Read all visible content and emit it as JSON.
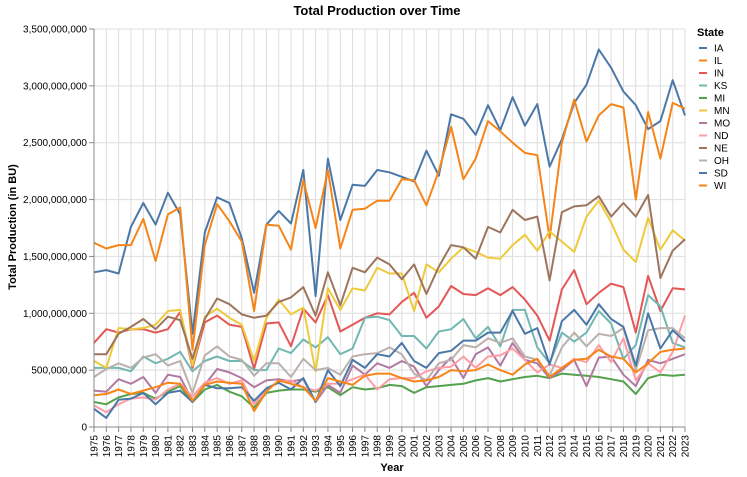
{
  "chart_data": {
    "type": "line",
    "title": "Total Production over Time",
    "xlabel": "Year",
    "ylabel": "Total Production (in BU)",
    "ylim": [
      0,
      3500000000
    ],
    "yticks": [
      0,
      500000000,
      1000000000,
      1500000000,
      2000000000,
      2500000000,
      3000000000,
      3500000000
    ],
    "ytick_labels": [
      "0",
      "500,000,000",
      "1,000,000,000",
      "1,500,000,000",
      "2,000,000,000",
      "2,500,000,000",
      "3,000,000,000",
      "3,500,000,000"
    ],
    "grid": true,
    "legend_title": "State",
    "legend_position": "right",
    "x": [
      "1975",
      "1976",
      "1977",
      "1978",
      "1979",
      "1980",
      "1981",
      "1982",
      "1983",
      "1984",
      "1985",
      "1986",
      "1987",
      "1988",
      "1989",
      "1990",
      "1991",
      "1992",
      "1993",
      "1994",
      "1995",
      "1996",
      "1997",
      "1998",
      "1999",
      "2000",
      "2001",
      "2002",
      "2003",
      "2004",
      "2005",
      "2006",
      "2007",
      "2008",
      "2009",
      "2010",
      "2011",
      "2012",
      "2013",
      "2014",
      "2015",
      "2016",
      "2017",
      "2018",
      "2019",
      "2020",
      "2021",
      "2022",
      "2023"
    ],
    "series": [
      {
        "name": "IA",
        "color": "#4c78a8",
        "values": [
          1360000000,
          1380000000,
          1350000000,
          1760000000,
          1970000000,
          1780000000,
          2060000000,
          1870000000,
          820000000,
          1710000000,
          2020000000,
          1970000000,
          1660000000,
          1180000000,
          1780000000,
          1900000000,
          1790000000,
          2260000000,
          1150000000,
          2360000000,
          1820000000,
          2130000000,
          2120000000,
          2260000000,
          2240000000,
          2200000000,
          2160000000,
          2430000000,
          2210000000,
          2750000000,
          2710000000,
          2570000000,
          2830000000,
          2610000000,
          2900000000,
          2650000000,
          2840000000,
          2290000000,
          2530000000,
          2850000000,
          3010000000,
          3320000000,
          3160000000,
          2950000000,
          2830000000,
          2620000000,
          2690000000,
          3050000000,
          2740000000
        ]
      },
      {
        "name": "IL",
        "color": "#f58518",
        "values": [
          1620000000,
          1570000000,
          1600000000,
          1600000000,
          1830000000,
          1460000000,
          1870000000,
          1930000000,
          680000000,
          1600000000,
          1960000000,
          1810000000,
          1630000000,
          1020000000,
          1780000000,
          1770000000,
          1560000000,
          2170000000,
          1750000000,
          2260000000,
          1570000000,
          1910000000,
          1920000000,
          1990000000,
          1990000000,
          2180000000,
          2170000000,
          1950000000,
          2250000000,
          2640000000,
          2180000000,
          2360000000,
          2690000000,
          2600000000,
          2500000000,
          2410000000,
          2390000000,
          1660000000,
          2500000000,
          2880000000,
          2510000000,
          2740000000,
          2840000000,
          2810000000,
          2000000000,
          2770000000,
          2360000000,
          2850000000,
          2800000000
        ]
      },
      {
        "name": "IN",
        "color": "#e45756",
        "values": [
          740000000,
          860000000,
          830000000,
          860000000,
          860000000,
          830000000,
          860000000,
          1010000000,
          520000000,
          920000000,
          980000000,
          900000000,
          880000000,
          510000000,
          910000000,
          920000000,
          710000000,
          1040000000,
          920000000,
          1160000000,
          840000000,
          900000000,
          960000000,
          1000000000,
          990000000,
          1100000000,
          1180000000,
          960000000,
          1060000000,
          1240000000,
          1170000000,
          1160000000,
          1220000000,
          1160000000,
          1230000000,
          1120000000,
          980000000,
          760000000,
          1210000000,
          1380000000,
          1080000000,
          1180000000,
          1260000000,
          1230000000,
          830000000,
          1330000000,
          1020000000,
          1220000000,
          1210000000
        ]
      },
      {
        "name": "KS",
        "color": "#72b7b2",
        "values": [
          520000000,
          520000000,
          520000000,
          490000000,
          620000000,
          560000000,
          600000000,
          660000000,
          490000000,
          580000000,
          620000000,
          580000000,
          580000000,
          500000000,
          500000000,
          690000000,
          650000000,
          770000000,
          700000000,
          790000000,
          640000000,
          690000000,
          960000000,
          970000000,
          940000000,
          800000000,
          800000000,
          690000000,
          840000000,
          860000000,
          950000000,
          780000000,
          880000000,
          710000000,
          1030000000,
          1030000000,
          700000000,
          560000000,
          830000000,
          750000000,
          830000000,
          1020000000,
          910000000,
          600000000,
          720000000,
          1160000000,
          1060000000,
          740000000,
          700000000
        ]
      },
      {
        "name": "MI",
        "color": "#54a24b",
        "values": [
          220000000,
          200000000,
          260000000,
          290000000,
          300000000,
          250000000,
          310000000,
          360000000,
          220000000,
          330000000,
          370000000,
          310000000,
          270000000,
          170000000,
          300000000,
          320000000,
          330000000,
          330000000,
          310000000,
          350000000,
          280000000,
          350000000,
          330000000,
          340000000,
          370000000,
          360000000,
          300000000,
          350000000,
          360000000,
          370000000,
          380000000,
          410000000,
          430000000,
          400000000,
          420000000,
          440000000,
          450000000,
          430000000,
          470000000,
          460000000,
          450000000,
          440000000,
          420000000,
          400000000,
          290000000,
          430000000,
          460000000,
          450000000,
          460000000
        ]
      },
      {
        "name": "MN",
        "color": "#eeca3b",
        "values": [
          580000000,
          520000000,
          870000000,
          860000000,
          870000000,
          900000000,
          1020000000,
          1030000000,
          540000000,
          970000000,
          1040000000,
          960000000,
          900000000,
          580000000,
          960000000,
          1120000000,
          990000000,
          1050000000,
          490000000,
          1220000000,
          1030000000,
          1220000000,
          1200000000,
          1400000000,
          1350000000,
          1350000000,
          1020000000,
          1430000000,
          1360000000,
          1480000000,
          1580000000,
          1540000000,
          1490000000,
          1480000000,
          1600000000,
          1690000000,
          1550000000,
          1720000000,
          1630000000,
          1540000000,
          1850000000,
          1990000000,
          1800000000,
          1560000000,
          1450000000,
          1840000000,
          1560000000,
          1730000000,
          1640000000
        ]
      },
      {
        "name": "MO",
        "color": "#b279a2",
        "values": [
          320000000,
          310000000,
          420000000,
          380000000,
          440000000,
          300000000,
          460000000,
          440000000,
          230000000,
          370000000,
          510000000,
          480000000,
          430000000,
          350000000,
          410000000,
          420000000,
          400000000,
          420000000,
          220000000,
          370000000,
          300000000,
          540000000,
          460000000,
          560000000,
          520000000,
          580000000,
          530000000,
          360000000,
          500000000,
          610000000,
          430000000,
          640000000,
          700000000,
          540000000,
          740000000,
          590000000,
          560000000,
          430000000,
          500000000,
          590000000,
          360000000,
          610000000,
          620000000,
          460000000,
          360000000,
          590000000,
          560000000,
          600000000,
          640000000
        ]
      },
      {
        "name": "ND",
        "color": "#ff9da6",
        "values": [
          190000000,
          130000000,
          200000000,
          250000000,
          260000000,
          240000000,
          330000000,
          380000000,
          270000000,
          390000000,
          430000000,
          380000000,
          410000000,
          200000000,
          330000000,
          400000000,
          410000000,
          350000000,
          320000000,
          380000000,
          380000000,
          420000000,
          460000000,
          330000000,
          420000000,
          430000000,
          430000000,
          490000000,
          520000000,
          530000000,
          620000000,
          520000000,
          620000000,
          630000000,
          690000000,
          590000000,
          480000000,
          550000000,
          520000000,
          600000000,
          570000000,
          720000000,
          570000000,
          780000000,
          410000000,
          560000000,
          480000000,
          660000000,
          980000000
        ]
      },
      {
        "name": "NE",
        "color": "#9d755d",
        "values": [
          640000000,
          640000000,
          820000000,
          880000000,
          950000000,
          860000000,
          970000000,
          940000000,
          600000000,
          950000000,
          1130000000,
          1080000000,
          990000000,
          960000000,
          980000000,
          1100000000,
          1140000000,
          1230000000,
          980000000,
          1360000000,
          1070000000,
          1400000000,
          1360000000,
          1490000000,
          1430000000,
          1300000000,
          1430000000,
          1170000000,
          1410000000,
          1600000000,
          1580000000,
          1480000000,
          1760000000,
          1710000000,
          1910000000,
          1820000000,
          1850000000,
          1290000000,
          1890000000,
          1940000000,
          1950000000,
          2030000000,
          1850000000,
          1970000000,
          1850000000,
          2040000000,
          1310000000,
          1550000000,
          1650000000
        ]
      },
      {
        "name": "OH",
        "color": "#bab0ac",
        "values": [
          440000000,
          510000000,
          560000000,
          520000000,
          610000000,
          640000000,
          540000000,
          580000000,
          300000000,
          630000000,
          710000000,
          620000000,
          590000000,
          450000000,
          560000000,
          560000000,
          440000000,
          600000000,
          500000000,
          520000000,
          460000000,
          620000000,
          640000000,
          650000000,
          700000000,
          640000000,
          470000000,
          410000000,
          560000000,
          590000000,
          720000000,
          700000000,
          780000000,
          740000000,
          780000000,
          620000000,
          590000000,
          450000000,
          700000000,
          830000000,
          710000000,
          820000000,
          800000000,
          870000000,
          500000000,
          850000000,
          870000000,
          870000000,
          780000000
        ]
      },
      {
        "name": "SD",
        "color": "#4c78a8",
        "values": [
          160000000,
          80000000,
          240000000,
          250000000,
          300000000,
          200000000,
          300000000,
          320000000,
          220000000,
          370000000,
          340000000,
          340000000,
          350000000,
          230000000,
          340000000,
          390000000,
          330000000,
          430000000,
          220000000,
          500000000,
          360000000,
          590000000,
          520000000,
          640000000,
          620000000,
          740000000,
          580000000,
          520000000,
          650000000,
          670000000,
          760000000,
          760000000,
          830000000,
          830000000,
          1020000000,
          820000000,
          870000000,
          550000000,
          930000000,
          1030000000,
          900000000,
          1080000000,
          950000000,
          880000000,
          540000000,
          1000000000,
          690000000,
          850000000,
          750000000
        ]
      },
      {
        "name": "WI",
        "color": "#f58518",
        "values": [
          280000000,
          290000000,
          330000000,
          290000000,
          320000000,
          350000000,
          390000000,
          380000000,
          230000000,
          370000000,
          400000000,
          390000000,
          380000000,
          140000000,
          310000000,
          410000000,
          380000000,
          350000000,
          230000000,
          430000000,
          400000000,
          370000000,
          450000000,
          470000000,
          470000000,
          430000000,
          400000000,
          410000000,
          440000000,
          500000000,
          490000000,
          500000000,
          550000000,
          500000000,
          460000000,
          550000000,
          600000000,
          440000000,
          520000000,
          590000000,
          600000000,
          680000000,
          620000000,
          600000000,
          480000000,
          560000000,
          660000000,
          680000000,
          690000000
        ]
      }
    ]
  }
}
